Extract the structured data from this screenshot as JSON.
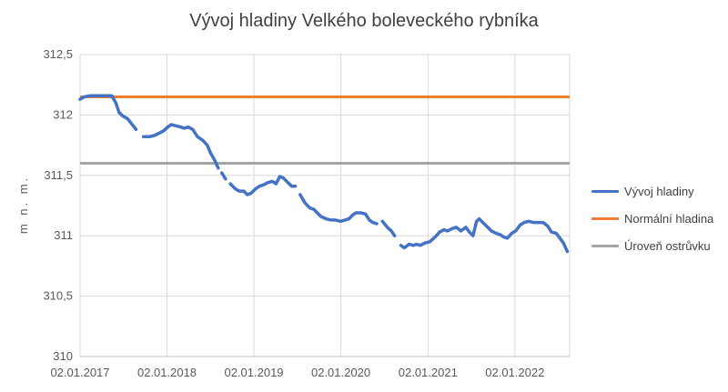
{
  "chart_data": {
    "type": "line",
    "title": "Vývoj hladiny Velkého boleveckého rybníka",
    "xlabel": "",
    "ylabel": "m n. m.",
    "ylim": [
      310,
      312.5
    ],
    "yticks": [
      310,
      310.5,
      311,
      311.5,
      312,
      312.5
    ],
    "ytick_labels": [
      "310",
      "310,5",
      "311",
      "311,5",
      "312",
      "312,5"
    ],
    "xlim": [
      "2017-01-02",
      "2022-08-20"
    ],
    "xticks": [
      "2017-01-02",
      "2018-01-02",
      "2019-01-02",
      "2020-01-02",
      "2021-01-02",
      "2022-01-02"
    ],
    "xtick_labels": [
      "02.01.2017",
      "02.01.2018",
      "02.01.2019",
      "02.01.2020",
      "02.01.2021",
      "02.01.2022"
    ],
    "grid": "vertical and horizontal",
    "legend_position": "right",
    "series": [
      {
        "name": "Vývoj hladiny",
        "color": "#4472C4",
        "segments": [
          [
            [
              "2017-01-02",
              312.13
            ],
            [
              "2017-01-20",
              312.15
            ],
            [
              "2017-02-15",
              312.16
            ],
            [
              "2017-04-01",
              312.16
            ],
            [
              "2017-05-15",
              312.16
            ],
            [
              "2017-06-01",
              312.1
            ],
            [
              "2017-06-15",
              312.02
            ],
            [
              "2017-07-01",
              311.99
            ],
            [
              "2017-07-20",
              311.97
            ],
            [
              "2017-08-05",
              311.93
            ],
            [
              "2017-08-25",
              311.88
            ]
          ],
          [
            [
              "2017-09-25",
              311.82
            ],
            [
              "2017-10-20",
              311.82
            ],
            [
              "2017-11-10",
              311.83
            ],
            [
              "2017-12-01",
              311.85
            ],
            [
              "2017-12-20",
              311.87
            ],
            [
              "2018-01-05",
              311.9
            ],
            [
              "2018-01-20",
              311.92
            ],
            [
              "2018-02-10",
              311.91
            ],
            [
              "2018-03-01",
              311.9
            ],
            [
              "2018-03-15",
              311.89
            ],
            [
              "2018-04-01",
              311.9
            ],
            [
              "2018-04-20",
              311.88
            ],
            [
              "2018-05-10",
              311.82
            ],
            [
              "2018-06-01",
              311.79
            ],
            [
              "2018-06-20",
              311.75
            ],
            [
              "2018-07-05",
              311.68
            ],
            [
              "2018-07-20",
              311.63
            ],
            [
              "2018-08-05",
              311.56
            ]
          ],
          [
            [
              "2018-08-20",
              311.52
            ],
            [
              "2018-09-05",
              311.47
            ]
          ],
          [
            [
              "2018-09-25",
              311.43
            ],
            [
              "2018-10-15",
              311.39
            ],
            [
              "2018-11-01",
              311.37
            ],
            [
              "2018-11-20",
              311.37
            ],
            [
              "2018-12-05",
              311.34
            ],
            [
              "2018-12-20",
              311.35
            ],
            [
              "2019-01-10",
              311.39
            ],
            [
              "2019-01-25",
              311.41
            ],
            [
              "2019-02-10",
              311.42
            ],
            [
              "2019-03-01",
              311.44
            ],
            [
              "2019-03-20",
              311.45
            ],
            [
              "2019-04-05",
              311.43
            ],
            [
              "2019-04-20",
              311.49
            ],
            [
              "2019-05-05",
              311.48
            ],
            [
              "2019-05-25",
              311.44
            ],
            [
              "2019-06-10",
              311.41
            ],
            [
              "2019-06-25",
              311.41
            ]
          ],
          [
            [
              "2019-07-15",
              311.34
            ],
            [
              "2019-08-05",
              311.27
            ],
            [
              "2019-08-25",
              311.23
            ],
            [
              "2019-09-10",
              311.22
            ],
            [
              "2019-09-25",
              311.19
            ],
            [
              "2019-10-10",
              311.16
            ],
            [
              "2019-11-01",
              311.14
            ],
            [
              "2019-11-20",
              311.13
            ],
            [
              "2019-12-10",
              311.13
            ],
            [
              "2020-01-01",
              311.12
            ],
            [
              "2020-01-20",
              311.13
            ],
            [
              "2020-02-05",
              311.14
            ],
            [
              "2020-02-20",
              311.17
            ],
            [
              "2020-03-05",
              311.19
            ],
            [
              "2020-03-25",
              311.19
            ],
            [
              "2020-04-15",
              311.18
            ],
            [
              "2020-05-01",
              311.13
            ],
            [
              "2020-05-15",
              311.11
            ],
            [
              "2020-06-01",
              311.1
            ]
          ],
          [
            [
              "2020-06-25",
              311.12
            ],
            [
              "2020-07-15",
              311.07
            ],
            [
              "2020-08-01",
              311.04
            ],
            [
              "2020-08-15",
              311.0
            ]
          ],
          [
            [
              "2020-09-10",
              310.92
            ],
            [
              "2020-09-25",
              310.9
            ],
            [
              "2020-10-15",
              310.93
            ],
            [
              "2020-11-01",
              310.92
            ],
            [
              "2020-11-15",
              310.93
            ],
            [
              "2020-12-01",
              310.92
            ],
            [
              "2020-12-20",
              310.94
            ],
            [
              "2021-01-10",
              310.95
            ],
            [
              "2021-02-01",
              310.99
            ],
            [
              "2021-02-20",
              311.03
            ],
            [
              "2021-03-10",
              311.05
            ],
            [
              "2021-03-25",
              311.04
            ],
            [
              "2021-04-15",
              311.06
            ],
            [
              "2021-05-01",
              311.07
            ],
            [
              "2021-05-20",
              311.04
            ],
            [
              "2021-06-10",
              311.07
            ],
            [
              "2021-06-25",
              311.03
            ],
            [
              "2021-07-10",
              311.0
            ],
            [
              "2021-07-25",
              311.12
            ],
            [
              "2021-08-05",
              311.14
            ],
            [
              "2021-08-25",
              311.1
            ],
            [
              "2021-09-10",
              311.07
            ],
            [
              "2021-09-25",
              311.04
            ],
            [
              "2021-10-15",
              311.02
            ],
            [
              "2021-11-01",
              311.01
            ],
            [
              "2021-11-15",
              310.99
            ],
            [
              "2021-12-01",
              310.98
            ],
            [
              "2021-12-20",
              311.02
            ],
            [
              "2022-01-05",
              311.04
            ],
            [
              "2022-01-25",
              311.09
            ],
            [
              "2022-02-10",
              311.11
            ],
            [
              "2022-03-01",
              311.12
            ],
            [
              "2022-03-20",
              311.11
            ],
            [
              "2022-04-10",
              311.11
            ],
            [
              "2022-05-01",
              311.11
            ],
            [
              "2022-05-20",
              311.08
            ],
            [
              "2022-06-05",
              311.03
            ],
            [
              "2022-06-25",
              311.02
            ],
            [
              "2022-07-10",
              310.98
            ],
            [
              "2022-07-25",
              310.94
            ],
            [
              "2022-08-10",
              310.87
            ]
          ]
        ]
      },
      {
        "name": "Normální hladina",
        "color": "#ED7D31",
        "constant": 312.15
      },
      {
        "name": "Úroveň ostrůvku",
        "color": "#A5A5A5",
        "constant": 311.6
      }
    ]
  }
}
